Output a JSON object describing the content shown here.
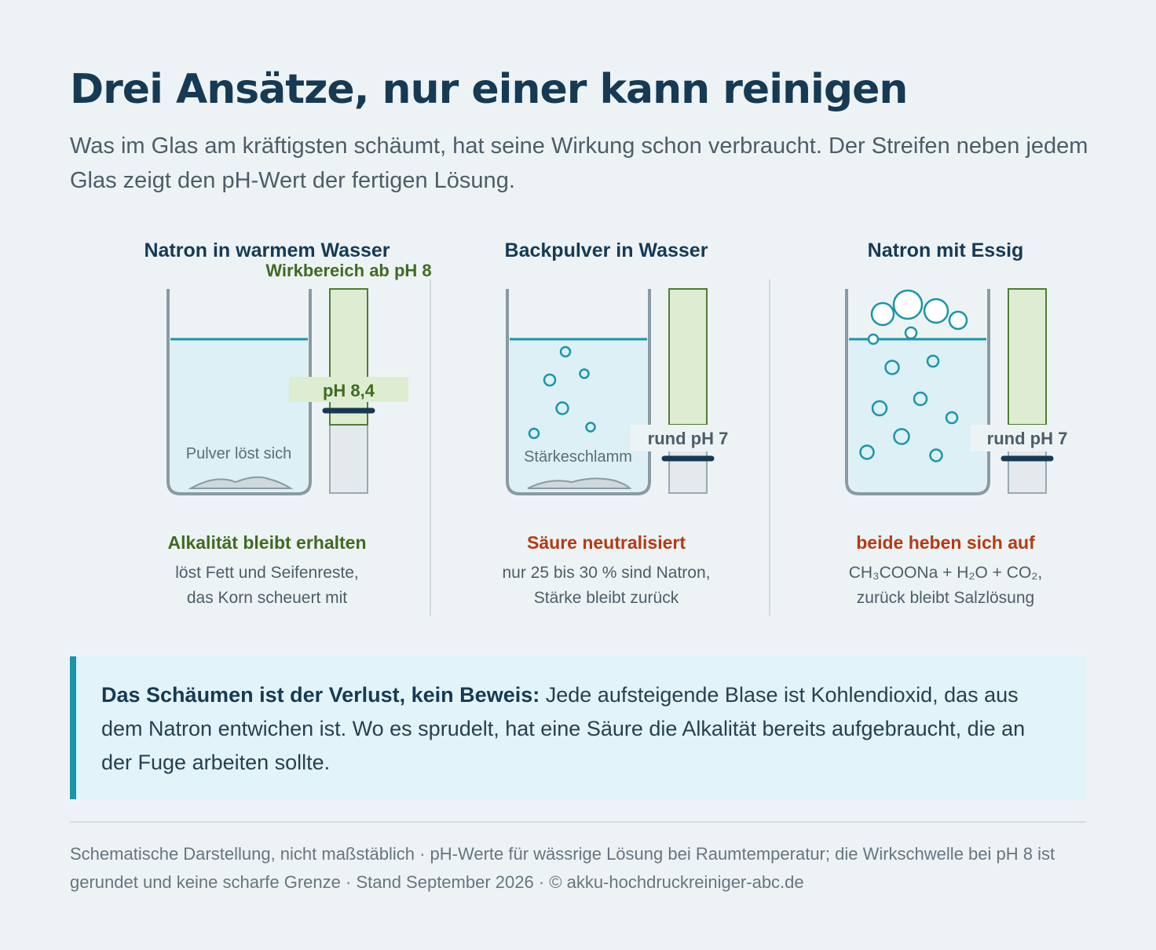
{
  "title": "Drei Ansätze, nur einer kann reinigen",
  "subtitle": "Was im Glas am kräftigsten schäumt, hat seine Wirkung schon verbraucht. Der Streifen neben jedem Glas zeigt den pH-Wert der fertigen Lösung.",
  "threshold_label": "Wirkbereich ab pH 8",
  "panels": [
    {
      "title": "Natron in warmem Wasser",
      "glass_label": "Pulver löst sich",
      "ph_label": "pH 8,4",
      "ph_value": 8.4,
      "verdict": "Alkalität bleibt erhalten",
      "verdict_color": "#3f6b21",
      "note_line1": "löst Fett und Seifenreste,",
      "note_line2": "das Korn scheuert mit"
    },
    {
      "title": "Backpulver in Wasser",
      "glass_label": "Stärkeschlamm",
      "ph_label": "rund pH 7",
      "ph_value": 7,
      "verdict": "Säure neutralisiert",
      "verdict_color": "#b53a12",
      "note_line1": "nur 25 bis 30 % sind Natron,",
      "note_line2": "Stärke bleibt zurück"
    },
    {
      "title": "Natron mit Essig",
      "glass_label": "",
      "ph_label": "rund pH 7",
      "ph_value": 7,
      "verdict": "beide heben sich auf",
      "verdict_color": "#b53a12",
      "note_line1": "CH₃COONa + H₂O + CO₂,",
      "note_line2": "zurück bleibt Salzlösung"
    }
  ],
  "callout": {
    "lead": "Das Schäumen ist der Verlust, kein Beweis:",
    "text": "Jede aufsteigende Blase ist Kohlendioxid, das aus dem Natron entwichen ist. Wo es sprudelt, hat eine Säure die Alkalität bereits aufgebraucht, die an der Fuge arbeiten sollte."
  },
  "footer": "Schematische Darstellung, nicht maßstäblich · pH-Werte für wässrige Lösung bei Raumtemperatur; die Wirkschwelle bei pH 8 ist gerundet und keine scharfe Grenze · Stand September 2026 · © akku-hochdruckreiniger-abc.de",
  "colors": {
    "title": "#163a54",
    "water_fill": "#dcf0f5",
    "water_line": "#1996a9",
    "glass_stroke": "#8a9aa4",
    "strip_active": "#deedd2",
    "strip_active_stroke": "#4e7d34",
    "strip_inactive": "#e3e9ec",
    "marker": "#163a54",
    "bubble": "#1996a9"
  }
}
